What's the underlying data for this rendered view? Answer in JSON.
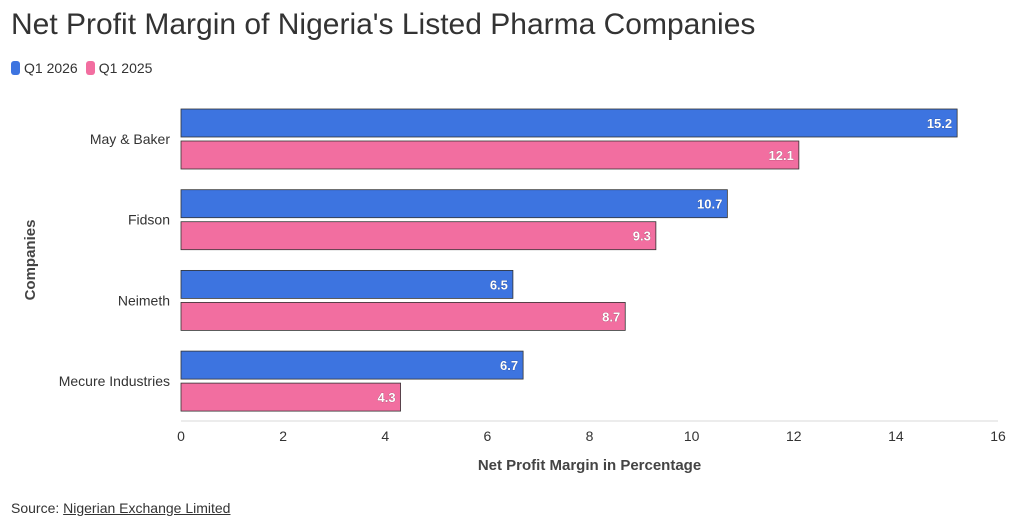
{
  "chart_data": {
    "type": "bar",
    "orientation": "horizontal",
    "title": "Net Profit Margin of Nigeria's Listed Pharma Companies",
    "xlabel": "Net Profit Margin in Percentage",
    "ylabel": "Companies",
    "xlim": [
      0,
      16
    ],
    "xticks": [
      "0",
      "2",
      "4",
      "6",
      "8",
      "10",
      "12",
      "14",
      "16"
    ],
    "categories": [
      "May & Baker",
      "Fidson",
      "Neimeth",
      "Mecure Industries"
    ],
    "series": [
      {
        "name": "Q1 2026",
        "color": "#3d74e0",
        "values": [
          15.2,
          10.7,
          6.5,
          6.7
        ],
        "labels": [
          "15.2",
          "10.7",
          "6.5",
          "6.7"
        ]
      },
      {
        "name": "Q1 2025",
        "color": "#f26ea0",
        "values": [
          12.1,
          9.3,
          8.7,
          4.3
        ],
        "labels": [
          "12.1",
          "9.3",
          "8.7",
          "4.3"
        ]
      }
    ],
    "legend_position": "top-left",
    "grid": false,
    "data_labels": "inside-end"
  },
  "source": {
    "label": "Source:",
    "link_text": "Nigerian Exchange Limited"
  }
}
